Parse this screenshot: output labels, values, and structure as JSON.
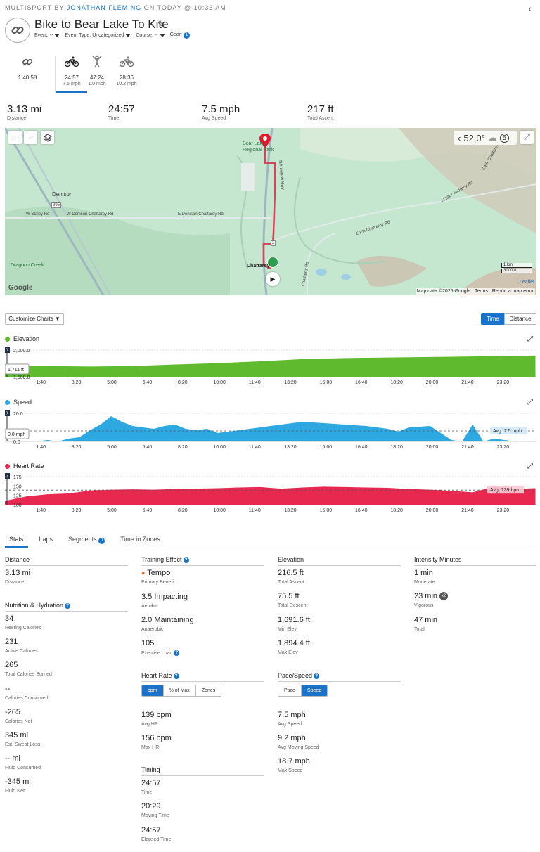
{
  "header": {
    "prefix": "MULTISPORT BY ",
    "author": "JONATHAN FLEMING",
    "suffix": " ON TODAY @ 10:33 AM",
    "title": "Bike to Bear Lake To Kite",
    "event_label": "Event: --",
    "event_type_label": "Event Type: Uncategorized",
    "course_label": "Course: --",
    "gear_label": "Gear:",
    "gear_count": "1"
  },
  "legs": [
    {
      "icon": "multisport-icon",
      "time": "1:40:58",
      "speed": ""
    },
    {
      "icon": "bike-icon",
      "time": "24:57",
      "speed": "7.5 mph"
    },
    {
      "icon": "kite-person-icon",
      "time": "47:24",
      "speed": "1.0 mph"
    },
    {
      "icon": "bike-icon",
      "time": "28:36",
      "speed": "10.2 mph"
    }
  ],
  "summary": [
    {
      "value": "3.13 mi",
      "label": "Distance"
    },
    {
      "value": "24:57",
      "label": "Time"
    },
    {
      "value": "7.5 mph",
      "label": "Avg Speed"
    },
    {
      "value": "217 ft",
      "label": "Total Ascent"
    }
  ],
  "map": {
    "labels": {
      "denison": "Denison",
      "dragoon": "Dragoon Creek",
      "park": "Bear Lake Regional Park",
      "chattaroy": "Chattaroy",
      "staley": "W Staley Rd",
      "wdenison": "W Denison Chattaroy Rd",
      "edenison": "E Denison Chattaroy Rd",
      "elk1": "E Elk Chattaroy Rd",
      "elk2": "N Elk Chattaroy Rd",
      "elk3": "E Elk Chattaroy Rd",
      "chatrd": "Chattaroy Rd",
      "newport": "N Newport Hwy",
      "hwy395": "395",
      "hwy2": "2",
      "google": "Google"
    },
    "weather_temp": "52.0°",
    "scale_km": "1 km",
    "scale_ft": "3000 ft",
    "leaflet": "Leaflet",
    "attribution": "Map data ©2025 Google",
    "terms": "Terms",
    "report": "Report a map error",
    "route_color": "#d9435a"
  },
  "controls": {
    "customize_charts": "Customize Charts",
    "toggle_time": "Time",
    "toggle_distance": "Distance"
  },
  "time_ticks": [
    "1:40",
    "3:20",
    "5:00",
    "6:40",
    "8:20",
    "10:00",
    "11:40",
    "13:20",
    "15:00",
    "16:40",
    "18:20",
    "20:00",
    "21:40",
    "23:20"
  ],
  "charts": {
    "elevation": {
      "title": "Elevation",
      "color": "#5fba2e",
      "y_top": "2,000.0",
      "y_bottom": "1,500.0",
      "tooltip": "1,711 ft",
      "cursor": "0"
    },
    "speed": {
      "title": "Speed",
      "color": "#2ea8e0",
      "y_top": "20.0",
      "y_bottom": "0.0",
      "tooltip": "0.0 mph",
      "avg": "Avg: 7.5 mph",
      "cursor": "0"
    },
    "heart_rate": {
      "title": "Heart Rate",
      "color": "#e8284f",
      "y_top": "175",
      "y_mid1": "150",
      "y_mid2": "125",
      "y_bottom": "100",
      "avg": "Avg: 139 bpm",
      "cursor": "0"
    }
  },
  "chart_data": [
    {
      "type": "area",
      "title": "Elevation",
      "ylim": [
        1500,
        2000
      ],
      "x_unit": "minutes",
      "x": [
        0,
        2,
        4,
        6,
        8,
        10,
        12,
        14,
        16,
        18,
        20,
        22,
        24.95
      ],
      "values": [
        1711,
        1700,
        1692,
        1700,
        1730,
        1755,
        1790,
        1830,
        1850,
        1860,
        1870,
        1880,
        1894
      ]
    },
    {
      "type": "area",
      "title": "Speed",
      "ylim": [
        0,
        20
      ],
      "avg_label": "Avg: 7.5 mph",
      "x": [
        0,
        1.5,
        2,
        2.5,
        3,
        3.5,
        4,
        4.5,
        5,
        5.5,
        6,
        6.5,
        7,
        7.5,
        8,
        8.5,
        9,
        9.5,
        10,
        11,
        12,
        13,
        14,
        15,
        16,
        17,
        18,
        18.5,
        19,
        20,
        21,
        21.5,
        22,
        22.5,
        23,
        23.5,
        24,
        24.95
      ],
      "values": [
        0,
        0,
        1,
        0,
        2,
        3,
        8,
        12,
        18,
        14,
        11,
        10,
        9,
        11,
        12,
        9,
        8,
        9,
        6,
        8,
        10,
        12,
        14,
        13,
        12,
        11,
        9,
        7,
        10,
        11,
        1,
        0,
        12,
        0,
        2,
        1,
        0,
        0
      ]
    },
    {
      "type": "area",
      "title": "Heart Rate",
      "ylim": [
        100,
        175
      ],
      "avg_label": "Avg: 139 bpm",
      "x": [
        0,
        1,
        2,
        3,
        4,
        5,
        6,
        7,
        8,
        9,
        10,
        11,
        12,
        13,
        14,
        15,
        16,
        17,
        18,
        19,
        20,
        21,
        22,
        23,
        24,
        24.95
      ],
      "values": [
        110,
        122,
        128,
        130,
        138,
        140,
        141,
        140,
        142,
        143,
        144,
        146,
        147,
        143,
        146,
        148,
        147,
        146,
        145,
        142,
        140,
        137,
        133,
        148,
        142,
        144
      ]
    }
  ],
  "tabs": [
    {
      "label": "Stats",
      "active": true
    },
    {
      "label": "Laps"
    },
    {
      "label": "Segments",
      "badge": "0"
    },
    {
      "label": "Time in Zones"
    }
  ],
  "stats": {
    "distance": {
      "heading": "Distance",
      "value": "3.13 mi",
      "label": "Distance"
    },
    "nutrition": {
      "heading": "Nutrition & Hydration",
      "items": [
        {
          "value": "34",
          "label": "Resting Calories"
        },
        {
          "value": "231",
          "label": "Active Calories"
        },
        {
          "value": "265",
          "label": "Total Calories Burned"
        },
        {
          "value": "--",
          "label": "Calories Consumed"
        },
        {
          "value": "-265",
          "label": "Calories Net"
        },
        {
          "value": "345 ml",
          "label": "Est. Sweat Loss"
        },
        {
          "value": "-- ml",
          "label": "Fluid Consumed"
        },
        {
          "value": "-345 ml",
          "label": "Fluid Net"
        }
      ]
    },
    "training": {
      "heading": "Training Effect",
      "items": [
        {
          "value": "Tempo",
          "label": "Primary Benefit"
        },
        {
          "value": "3.5 Impacting",
          "label": "Aerobic"
        },
        {
          "value": "2.0 Maintaining",
          "label": "Anaerobic"
        },
        {
          "value": "105",
          "label": "Exercise Load"
        }
      ]
    },
    "heart": {
      "heading": "Heart Rate",
      "seg": [
        "bpm",
        "% of Max",
        "Zones"
      ],
      "items": [
        {
          "value": "139 bpm",
          "label": "Avg HR"
        },
        {
          "value": "156 bpm",
          "label": "Max HR"
        }
      ]
    },
    "timing": {
      "heading": "Timing",
      "items": [
        {
          "value": "24:57",
          "label": "Time"
        },
        {
          "value": "20:29",
          "label": "Moving Time"
        },
        {
          "value": "24:57",
          "label": "Elapsed Time"
        }
      ]
    },
    "elevation": {
      "heading": "Elevation",
      "items": [
        {
          "value": "216.5 ft",
          "label": "Total Ascent"
        },
        {
          "value": "75.5 ft",
          "label": "Total Descent"
        },
        {
          "value": "1,691.6 ft",
          "label": "Min Elev"
        },
        {
          "value": "1,894.4 ft",
          "label": "Max Elev"
        }
      ]
    },
    "pace": {
      "heading": "Pace/Speed",
      "seg": [
        "Pace",
        "Speed"
      ],
      "items": [
        {
          "value": "7.5 mph",
          "label": "Avg Speed"
        },
        {
          "value": "9.2 mph",
          "label": "Avg Moving Speed"
        },
        {
          "value": "18.7 mph",
          "label": "Max Speed"
        }
      ]
    },
    "intensity": {
      "heading": "Intensity Minutes",
      "items": [
        {
          "value": "1 min",
          "label": "Moderate"
        },
        {
          "value": "23 min",
          "label": "Vigorous",
          "badge": "x2"
        },
        {
          "value": "47 min",
          "label": "Total"
        }
      ]
    }
  }
}
